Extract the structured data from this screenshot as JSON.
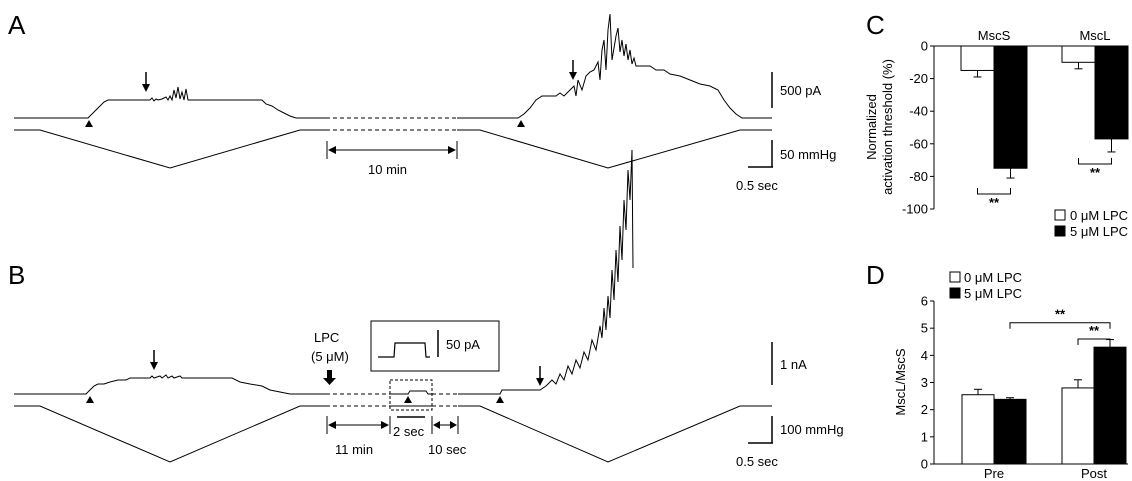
{
  "panels": {
    "A": {
      "letter": "A",
      "current_scale": "500 pA",
      "pressure_scale": "50 mmHg",
      "time_scale": "0.5 sec",
      "gap_label": "10 min"
    },
    "B": {
      "letter": "B",
      "drug_label": "LPC",
      "drug_conc": "(5 μM)",
      "inset_scale": "50 pA",
      "current_scale": "1 nA",
      "pressure_scale": "100 mmHg",
      "time_scale": "0.5 sec",
      "gap_label": "11 min",
      "gap2_label": "10 sec",
      "inset_time_label": "2 sec"
    }
  },
  "colors": {
    "control": "#ffffff",
    "lpc": "#000000",
    "trace": "#000000"
  },
  "chart_data": [
    {
      "panel": "C",
      "letter": "C",
      "type": "bar",
      "categories": [
        "MscS",
        "MscL"
      ],
      "series": [
        {
          "name": "0 μM LPC",
          "values": [
            -15,
            -10
          ],
          "errors": [
            4,
            4
          ]
        },
        {
          "name": "5 μM LPC",
          "values": [
            -75,
            -57
          ],
          "errors": [
            6,
            8
          ]
        }
      ],
      "ylabel": [
        "Normalized",
        "activation threshold (%)"
      ],
      "ylim": [
        -100,
        0
      ],
      "yticks": [
        "0",
        "-20",
        "-40",
        "-60",
        "-80",
        "-100"
      ],
      "significance": [
        "**",
        "**"
      ],
      "legend_position": "bottom-right"
    },
    {
      "panel": "D",
      "letter": "D",
      "type": "bar",
      "categories": [
        "Pre",
        "Post"
      ],
      "series": [
        {
          "name": "0 μM LPC",
          "values": [
            2.55,
            2.8
          ],
          "errors": [
            0.2,
            0.3
          ]
        },
        {
          "name": "5 μM LPC",
          "values": [
            2.38,
            4.3
          ],
          "errors": [
            0.06,
            0.28
          ]
        }
      ],
      "ylabel": "MscL/MscS",
      "ylim": [
        0,
        6
      ],
      "yticks": [
        "0",
        "1",
        "2",
        "3",
        "4",
        "5",
        "6"
      ],
      "significance": [
        "**",
        "**"
      ],
      "legend_position": "top-left"
    }
  ]
}
